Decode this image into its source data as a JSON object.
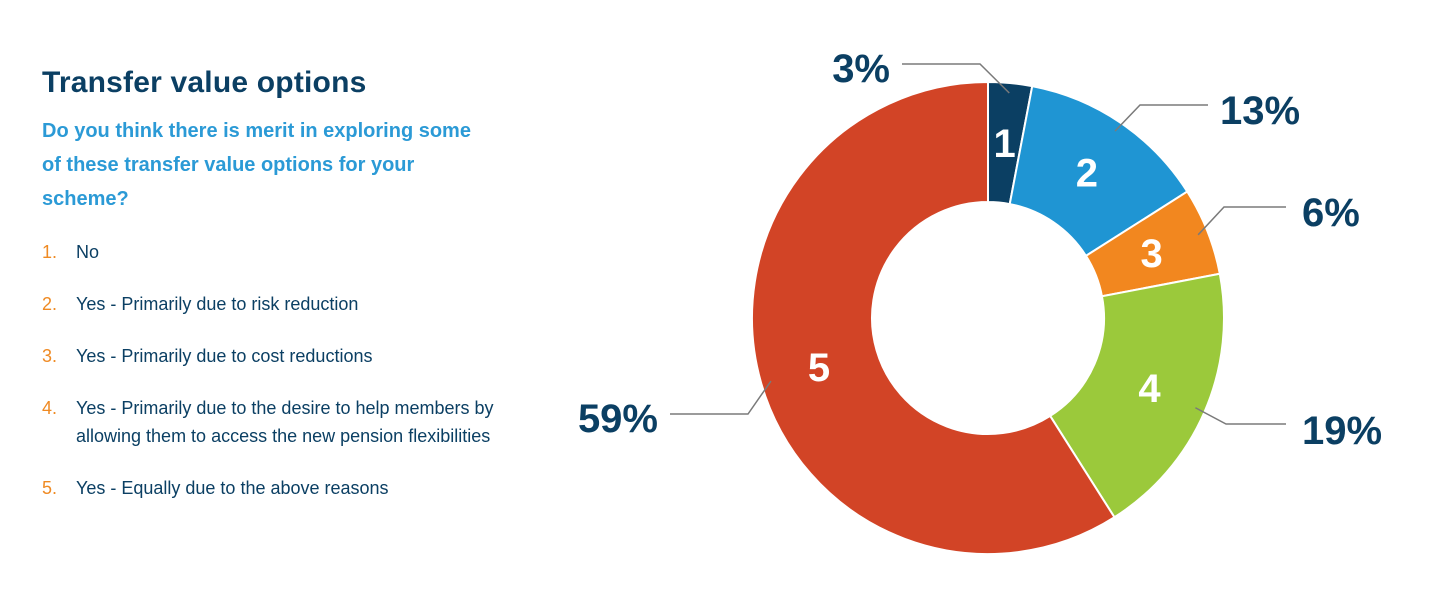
{
  "title": "Transfer value options",
  "question": "Do you think there is merit in exploring some of these transfer value options for your scheme?",
  "options": [
    {
      "num": "1.",
      "text": "No"
    },
    {
      "num": "2.",
      "text": "Yes - Primarily due to risk reduction"
    },
    {
      "num": "3.",
      "text": "Yes - Primarily due to cost reductions"
    },
    {
      "num": "4.",
      "text": "Yes - Primarily due to the desire to help members by allowing them to access the new pension flexibilities"
    },
    {
      "num": "5.",
      "text": "Yes - Equally due to the above reasons"
    }
  ],
  "chart_data": {
    "type": "pie",
    "donut": true,
    "categories": [
      "1",
      "2",
      "3",
      "4",
      "5"
    ],
    "values": [
      3,
      13,
      6,
      19,
      59
    ],
    "data_labels": [
      "3%",
      "13%",
      "6%",
      "19%",
      "59%"
    ],
    "colors": [
      "#0b3f63",
      "#1f95d3",
      "#f2871f",
      "#9bc93b",
      "#d24426"
    ]
  }
}
